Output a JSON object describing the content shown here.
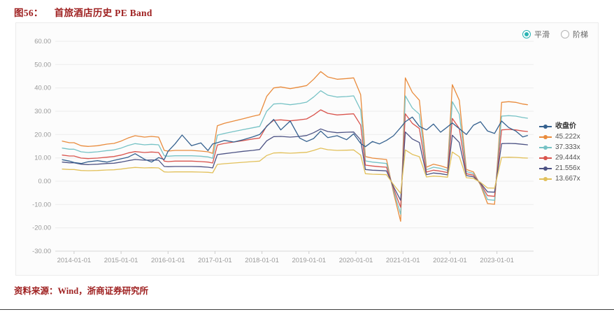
{
  "title": {
    "label": "图56：",
    "text": "首旅酒店历史 PE Band"
  },
  "controls": {
    "smooth_label": "平滑",
    "step_label": "阶梯",
    "selected": "平滑",
    "accent_color": "#2ab3b3"
  },
  "source": {
    "label": "资料来源：",
    "text": "Wind，浙商证券研究所"
  },
  "colors": {
    "title_red": "#9e1f1f",
    "panel_bg": "#fcfcfc",
    "panel_border": "#ebebeb",
    "grid": "#ececec",
    "axis": "#d9d9d9",
    "tick_text": "#999999"
  },
  "chart_data": {
    "type": "line",
    "title": "首旅酒店历史 PE Band",
    "grid": "horizontal",
    "legend_position": "right",
    "x_range": [
      2013.6,
      2023.78
    ],
    "y_range": [
      -30,
      60
    ],
    "y_tick_step": 10,
    "y_ticks": [
      "60.00",
      "50.00",
      "40.00",
      "30.00",
      "20.00",
      "10.00",
      "0.00",
      "-10.00",
      "-20.00",
      "-30.00"
    ],
    "x_ticks": [
      "2014-01-01",
      "2015-01-01",
      "2016-01-01",
      "2017-01-01",
      "2018-01-01",
      "2019-01-01",
      "2020-01-01",
      "2021-01-01",
      "2022-01-01",
      "2023-01-01"
    ],
    "x": [
      2013.75,
      2013.9,
      2014.0,
      2014.15,
      2014.3,
      2014.5,
      2014.7,
      2014.85,
      2015.0,
      2015.15,
      2015.3,
      2015.5,
      2015.65,
      2015.8,
      2015.92,
      2016.0,
      2016.15,
      2016.3,
      2016.5,
      2016.7,
      2016.85,
      2016.95,
      2017.05,
      2017.2,
      2017.4,
      2017.6,
      2017.8,
      2017.95,
      2018.1,
      2018.25,
      2018.4,
      2018.6,
      2018.8,
      2018.95,
      2019.1,
      2019.25,
      2019.4,
      2019.6,
      2019.8,
      2019.95,
      2020.1,
      2020.2,
      2020.35,
      2020.5,
      2020.65,
      2020.8,
      2020.95,
      2021.05,
      2021.2,
      2021.35,
      2021.5,
      2021.65,
      2021.8,
      2021.95,
      2022.05,
      2022.2,
      2022.35,
      2022.5,
      2022.65,
      2022.8,
      2022.95,
      2023.1,
      2023.25,
      2023.4,
      2023.55,
      2023.65
    ],
    "series": [
      {
        "name": "收盘价",
        "color": "#35618f",
        "values": [
          9.2,
          8.6,
          8.0,
          7.6,
          8.3,
          8.8,
          8.2,
          8.9,
          9.6,
          10.3,
          11.8,
          9.4,
          8.2,
          10.1,
          9.3,
          12.8,
          16.0,
          19.8,
          15.2,
          16.4,
          13.1,
          16.0,
          16.5,
          17.5,
          16.8,
          17.8,
          19.0,
          20.0,
          23.5,
          26.5,
          22.0,
          25.8,
          18.5,
          17.0,
          18.3,
          21.5,
          18.7,
          19.5,
          17.8,
          20.3,
          16.2,
          14.8,
          17.0,
          16.0,
          17.5,
          19.5,
          23.0,
          25.5,
          27.5,
          23.5,
          22.0,
          24.5,
          21.0,
          23.3,
          25.0,
          22.5,
          20.0,
          24.0,
          25.5,
          21.5,
          20.5,
          25.8,
          23.0,
          21.5,
          19.0,
          19.6
        ]
      },
      {
        "name": "45.222x",
        "color": "#e98b3c",
        "values": [
          17.2,
          16.5,
          16.5,
          15.2,
          14.9,
          15.2,
          15.9,
          16.2,
          17.2,
          18.5,
          19.5,
          18.9,
          19.2,
          18.9,
          13.2,
          12.9,
          13.2,
          13.2,
          13.2,
          12.9,
          12.6,
          11.9,
          23.8,
          24.8,
          25.8,
          26.8,
          27.8,
          28.5,
          36.4,
          40.0,
          40.4,
          39.7,
          40.4,
          41.0,
          43.7,
          47.0,
          44.7,
          43.7,
          44.0,
          44.3,
          37.1,
          10.6,
          9.9,
          9.6,
          9.3,
          -5.0,
          -17.2,
          44.3,
          38.1,
          34.7,
          6.0,
          7.3,
          6.6,
          5.6,
          41.4,
          34.7,
          5.0,
          4.0,
          -1.7,
          -9.6,
          -9.9,
          33.8,
          34.1,
          33.8,
          33.1,
          32.8
        ]
      },
      {
        "name": "37.333x",
        "color": "#76c2c5",
        "values": [
          14.2,
          13.7,
          13.7,
          12.6,
          12.3,
          12.6,
          13.1,
          13.4,
          14.2,
          15.3,
          16.1,
          15.6,
          15.8,
          15.6,
          10.9,
          10.7,
          10.9,
          10.9,
          10.9,
          10.7,
          10.4,
          9.8,
          19.7,
          20.5,
          21.3,
          22.1,
          22.9,
          23.5,
          30.0,
          33.1,
          33.3,
          32.8,
          33.3,
          33.9,
          36.1,
          38.8,
          36.9,
          36.1,
          36.3,
          36.6,
          30.6,
          8.7,
          8.2,
          7.9,
          7.6,
          -4.1,
          -14.2,
          36.6,
          31.4,
          28.7,
          4.9,
          6.0,
          5.5,
          4.6,
          34.1,
          28.7,
          4.1,
          3.3,
          -1.4,
          -7.9,
          -8.2,
          27.9,
          28.1,
          27.9,
          27.3,
          27.0
        ]
      },
      {
        "name": "29.444x",
        "color": "#d9544d",
        "values": [
          11.2,
          10.8,
          10.8,
          9.9,
          9.7,
          9.9,
          10.3,
          10.6,
          11.2,
          12.1,
          12.7,
          12.3,
          12.5,
          12.3,
          8.6,
          8.4,
          8.6,
          8.6,
          8.6,
          8.4,
          8.2,
          7.8,
          15.5,
          16.2,
          16.8,
          17.4,
          18.1,
          18.5,
          23.7,
          26.1,
          26.3,
          25.9,
          26.3,
          26.7,
          28.4,
          30.6,
          29.1,
          28.4,
          28.7,
          28.9,
          24.1,
          6.9,
          6.5,
          6.2,
          6.0,
          -3.2,
          -11.2,
          28.9,
          24.8,
          22.6,
          3.9,
          4.7,
          4.3,
          3.7,
          26.9,
          22.6,
          3.2,
          2.6,
          -1.1,
          -6.2,
          -6.5,
          22.0,
          22.2,
          22.0,
          21.5,
          21.3
        ]
      },
      {
        "name": "21.556x",
        "color": "#4d5384",
        "values": [
          8.2,
          7.9,
          7.9,
          7.3,
          7.1,
          7.3,
          7.6,
          7.7,
          8.2,
          8.8,
          9.3,
          9.0,
          9.1,
          9.0,
          6.3,
          6.2,
          6.3,
          6.3,
          6.3,
          6.2,
          6.0,
          5.7,
          11.4,
          11.8,
          12.3,
          12.8,
          13.2,
          13.6,
          17.3,
          19.1,
          19.2,
          18.9,
          19.2,
          19.6,
          20.8,
          22.4,
          21.3,
          20.8,
          21.0,
          21.1,
          17.7,
          5.0,
          4.7,
          4.6,
          4.4,
          -2.4,
          -8.2,
          21.1,
          18.1,
          16.6,
          2.8,
          3.5,
          3.2,
          2.7,
          19.7,
          16.6,
          2.4,
          1.9,
          -0.8,
          -4.6,
          -4.7,
          16.1,
          16.2,
          16.1,
          15.8,
          15.6
        ]
      },
      {
        "name": "13.667x",
        "color": "#e2c05a",
        "values": [
          5.2,
          5.0,
          5.0,
          4.6,
          4.5,
          4.6,
          4.8,
          4.9,
          5.2,
          5.6,
          5.9,
          5.7,
          5.8,
          5.7,
          4.0,
          3.9,
          4.0,
          4.0,
          4.0,
          3.9,
          3.8,
          3.6,
          7.2,
          7.5,
          7.8,
          8.1,
          8.4,
          8.6,
          11.0,
          12.1,
          12.2,
          12.0,
          12.2,
          12.4,
          13.2,
          14.2,
          13.5,
          13.2,
          13.3,
          13.4,
          11.2,
          3.2,
          3.0,
          2.9,
          2.8,
          -1.5,
          -5.2,
          13.4,
          11.5,
          10.5,
          1.8,
          2.2,
          2.0,
          1.7,
          12.5,
          10.5,
          1.5,
          1.2,
          -0.5,
          -2.9,
          -3.0,
          10.2,
          10.3,
          10.2,
          10.0,
          9.9
        ]
      }
    ]
  }
}
